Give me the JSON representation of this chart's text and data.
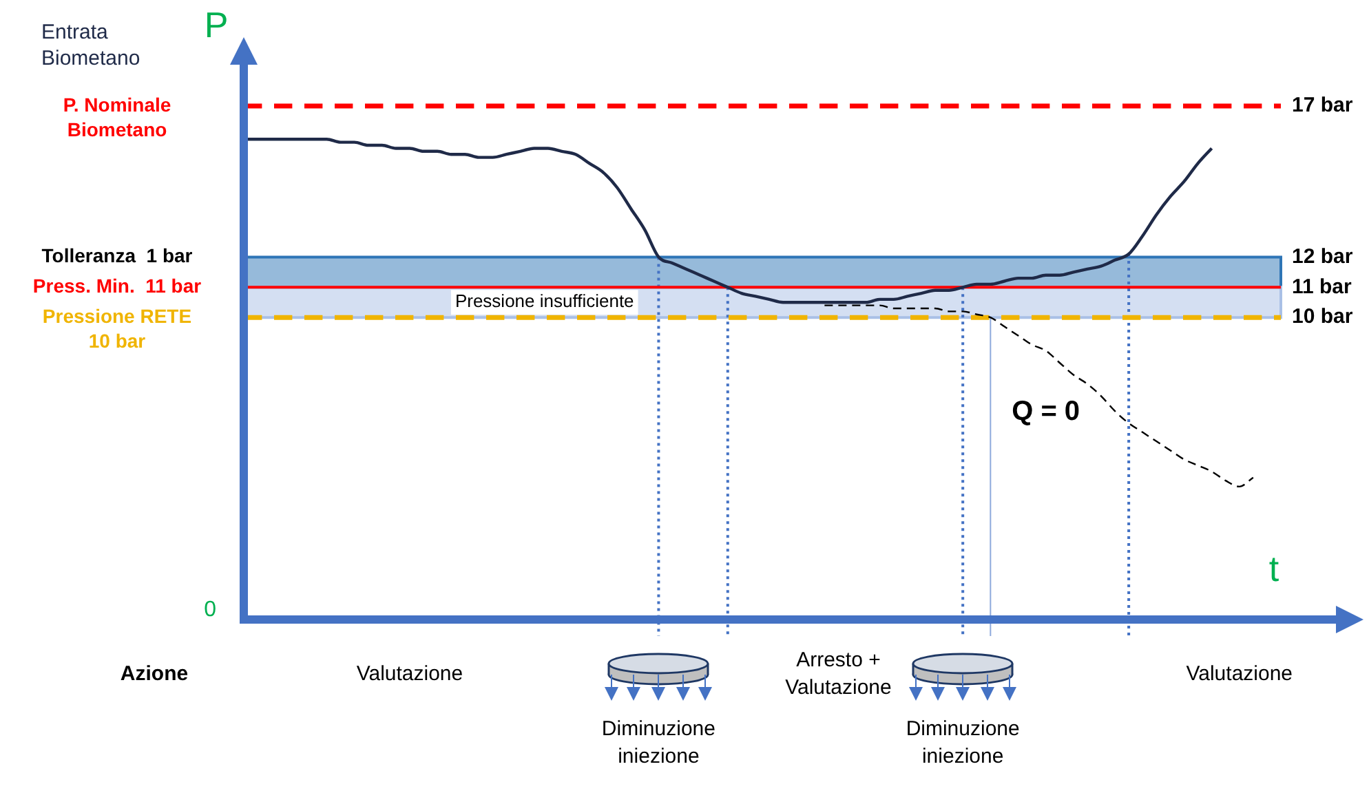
{
  "chart_data": {
    "type": "line",
    "xlabel": "t",
    "ylabel": "P",
    "categories": [
      null,
      null,
      null,
      null,
      null,
      null,
      null,
      null,
      null,
      null,
      null,
      null,
      "Valutazione",
      null,
      null,
      null,
      null,
      null,
      null,
      null,
      null,
      null,
      null,
      null,
      null,
      null,
      null,
      null,
      null,
      null,
      "Diminuzione iniezione",
      null,
      null,
      null,
      null,
      null,
      null,
      null,
      null,
      null,
      null,
      null,
      null,
      "Arresto + Valutazione",
      null,
      null,
      null,
      null,
      null,
      null,
      null,
      null,
      "Diminuzione iniezione",
      null,
      null,
      null,
      null,
      null,
      null,
      null,
      null,
      null,
      null,
      null,
      null,
      null,
      null,
      null,
      null,
      null,
      null,
      null,
      "Valutazione",
      null,
      null,
      null
    ],
    "ylim": [
      0,
      17
    ],
    "yticks": [
      {
        "value": 10,
        "label": "10 bar"
      },
      {
        "value": 11,
        "label": "11 bar"
      },
      {
        "value": 12,
        "label": "12 bar"
      },
      {
        "value": 17,
        "label": "17 bar"
      }
    ],
    "legend": false,
    "marker": "none",
    "series": [
      {
        "name": "Entrata Biometano",
        "color": "#1f2a48",
        "values": [
          15.9,
          15.9,
          15.9,
          15.9,
          15.9,
          15.9,
          15.9,
          15.8,
          15.8,
          15.7,
          15.7,
          15.6,
          15.6,
          15.5,
          15.5,
          15.4,
          15.4,
          15.3,
          15.3,
          15.4,
          15.5,
          15.6,
          15.6,
          15.5,
          15.4,
          15.1,
          14.8,
          14.3,
          13.6,
          12.9,
          12.0,
          11.8,
          11.6,
          11.4,
          11.2,
          11.0,
          10.8,
          10.7,
          10.6,
          10.5,
          10.5,
          10.5,
          10.5,
          10.5,
          10.5,
          10.5,
          10.6,
          10.6,
          10.7,
          10.8,
          10.9,
          10.9,
          11.0,
          11.1,
          11.1,
          11.2,
          11.3,
          11.3,
          11.4,
          11.4,
          11.5,
          11.6,
          11.7,
          11.9,
          12.1,
          12.7,
          13.4,
          14.0,
          14.5,
          15.1,
          15.6,
          null,
          null,
          null,
          null,
          null
        ]
      },
      {
        "name": "Q = 0",
        "color": "#000000",
        "line_style": "dashed",
        "values": [
          null,
          null,
          null,
          null,
          null,
          null,
          null,
          null,
          null,
          null,
          null,
          null,
          null,
          null,
          null,
          null,
          null,
          null,
          null,
          null,
          null,
          null,
          null,
          null,
          null,
          null,
          null,
          null,
          null,
          null,
          null,
          null,
          null,
          null,
          null,
          null,
          null,
          null,
          null,
          null,
          null,
          null,
          10.4,
          10.4,
          10.4,
          10.4,
          10.4,
          10.3,
          10.3,
          10.3,
          10.3,
          10.2,
          10.2,
          10.1,
          10.0,
          9.7,
          9.4,
          9.1,
          8.9,
          8.5,
          8.1,
          7.8,
          7.4,
          6.9,
          6.5,
          6.2,
          5.9,
          5.6,
          5.3,
          5.1,
          4.9,
          4.6,
          4.4,
          4.7,
          null,
          null
        ]
      }
    ],
    "bands": [
      {
        "axis": "y",
        "from": 11,
        "to": 12,
        "label": "Tolleranza  1 bar",
        "color": "#2e75b6"
      },
      {
        "axis": "y",
        "from": 10,
        "to": 11,
        "label": "Pressione insufficiente",
        "color": "#a9c0e6"
      }
    ],
    "ref_lines": [
      {
        "axis": "y",
        "value": 17,
        "label": "P. Nominale Biometano",
        "color": "#ff0000",
        "line_style": "dashed"
      },
      {
        "axis": "y",
        "value": 11,
        "label": "Press. Min.  11 bar",
        "color": "#ff0000",
        "line_style": "solid"
      },
      {
        "axis": "y",
        "value": 10,
        "label": "Pressione RETE 10 bar",
        "color": "#f0b400",
        "line_style": "dashed"
      }
    ],
    "annotations": [
      "0",
      "Azione"
    ]
  }
}
